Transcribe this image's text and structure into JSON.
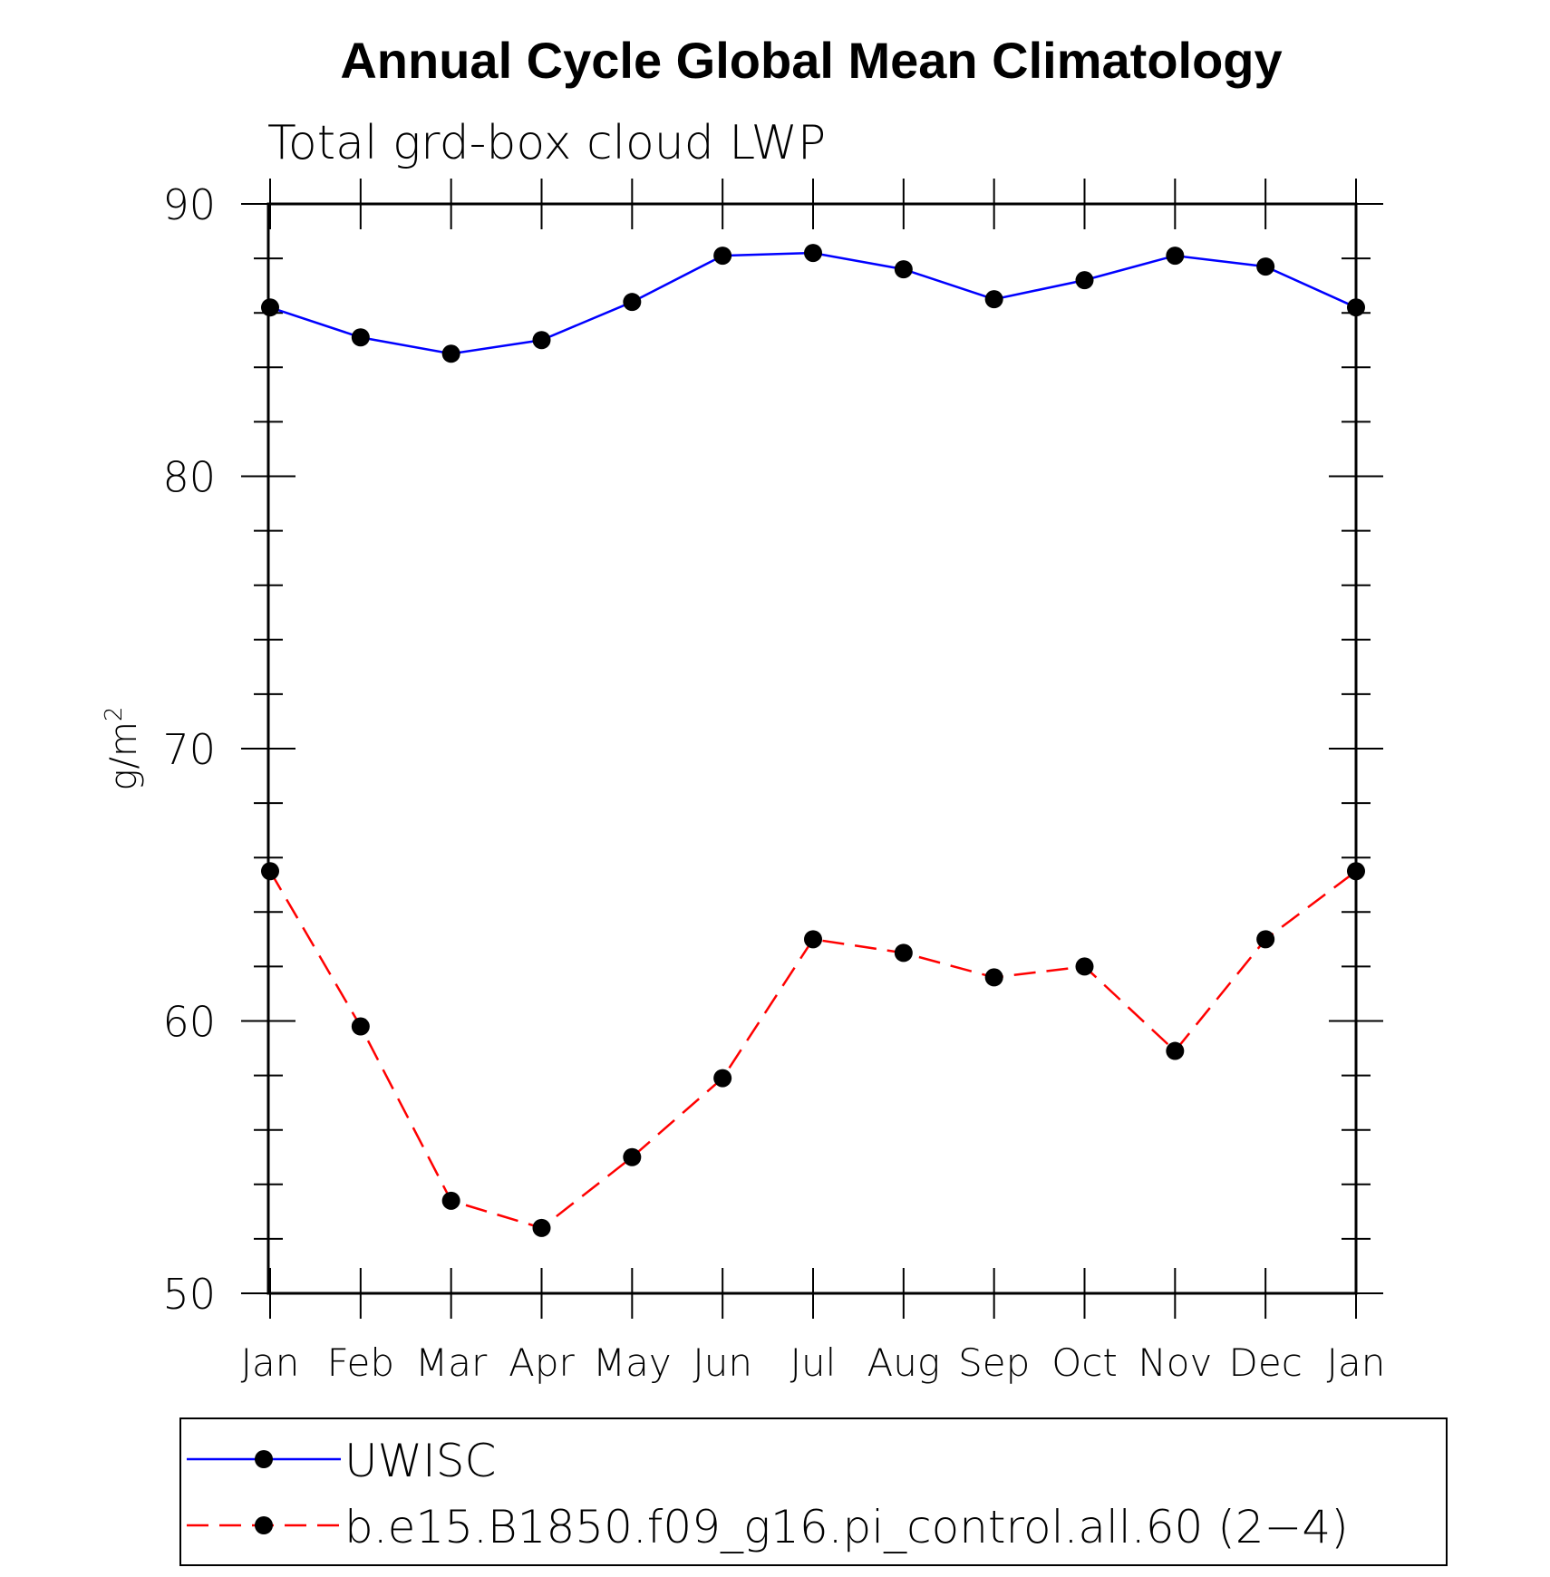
{
  "chart_data": {
    "type": "line",
    "title": "Annual Cycle Global Mean Climatology",
    "subtitle": "Total grd-box cloud LWP",
    "ylabel": "g/m",
    "ylabel_superscript": "2",
    "xlabel": "",
    "ylim": [
      50,
      90
    ],
    "yticks": [
      50,
      60,
      70,
      80,
      90
    ],
    "categories": [
      "Jan",
      "Feb",
      "Mar",
      "Apr",
      "May",
      "Jun",
      "Jul",
      "Aug",
      "Sep",
      "Oct",
      "Nov",
      "Dec",
      "Jan"
    ],
    "series": [
      {
        "name": "UWISC",
        "color": "#0000ff",
        "dash": "solid",
        "values": [
          86.2,
          85.1,
          84.5,
          85.0,
          86.4,
          88.1,
          88.2,
          87.6,
          86.5,
          87.2,
          88.1,
          87.7,
          86.2
        ]
      },
      {
        "name": "b.e15.B1850.f09_g16.pi_control.all.60 (2−4)",
        "color": "#ff0000",
        "dash": "dashed",
        "values": [
          65.5,
          59.8,
          53.4,
          52.4,
          55.0,
          57.9,
          63.0,
          62.5,
          61.6,
          62.0,
          58.9,
          63.0,
          65.5
        ]
      }
    ],
    "legend_position": "bottom"
  }
}
